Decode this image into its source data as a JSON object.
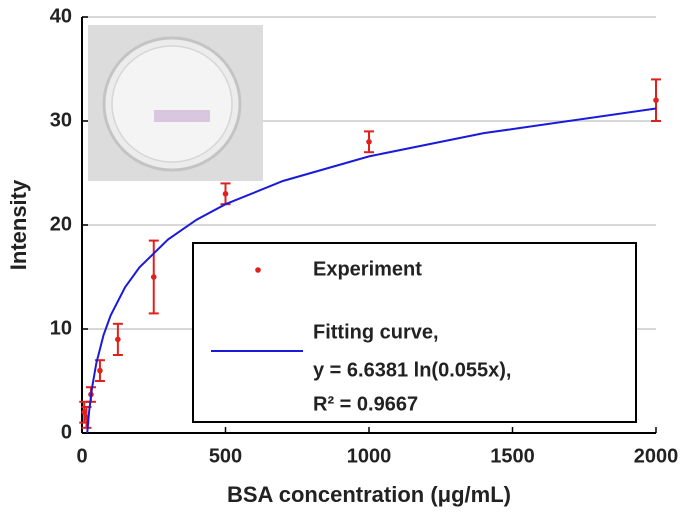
{
  "chart_data": {
    "type": "scatter",
    "xlabel": "BSA concentration (μg/mL)",
    "ylabel": "Intensity",
    "xlim": [
      0,
      2000
    ],
    "xticks": [
      0,
      500,
      1000,
      1500,
      2000
    ],
    "ylim": [
      0,
      40
    ],
    "yticks": [
      0,
      10,
      20,
      30,
      40
    ],
    "grid": true,
    "legend": "lower right",
    "series": [
      {
        "name": "Experiment",
        "color": "#e0201b",
        "kind": "errorbar",
        "x": [
          7.8,
          15.6,
          31.25,
          62.5,
          125,
          250,
          500,
          1000,
          2000
        ],
        "values": [
          2,
          1.5,
          3.7,
          6,
          9,
          15,
          23,
          28,
          32
        ],
        "errors": [
          1,
          1,
          0.7,
          1,
          1.5,
          3.5,
          1,
          1,
          2
        ]
      },
      {
        "name": "Fitting curve,",
        "color": "#1a1adb",
        "kind": "line",
        "x": [
          18.2,
          25,
          35,
          50,
          75,
          100,
          150,
          200,
          300,
          400,
          500,
          700,
          1000,
          1400,
          2000
        ],
        "values": [
          0,
          2.11,
          4.35,
          6.72,
          9.41,
          11.32,
          14.01,
          15.92,
          18.61,
          20.52,
          22.0,
          24.23,
          26.6,
          28.83,
          31.2
        ]
      }
    ],
    "annotations": [
      "y = 6.6381 ln(0.055x),",
      "R² = 0.9667"
    ]
  }
}
